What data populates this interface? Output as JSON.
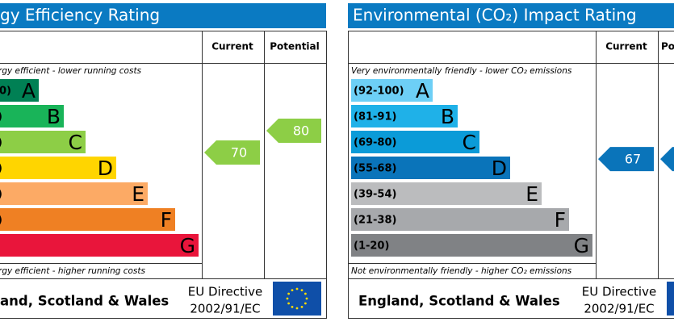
{
  "panels": [
    {
      "title": "gy Efficiency Rating",
      "columns": [
        "Current",
        "Potential"
      ],
      "top_note": "rgy efficient - lower running costs",
      "bottom_note": "rgy efficient - higher running costs",
      "bands": [
        {
          "range": "0)",
          "letter": "A",
          "color": "#008054"
        },
        {
          "range": ")",
          "letter": "B",
          "color": "#19b459"
        },
        {
          "range": ")",
          "letter": "C",
          "color": "#8dce46"
        },
        {
          "range": ")",
          "letter": "D",
          "color": "#ffd500"
        },
        {
          "range": ")",
          "letter": "E",
          "color": "#fcaa65"
        },
        {
          "range": ")",
          "letter": "F",
          "color": "#ef8023"
        },
        {
          "letter": "G",
          "color": "#e9153b"
        }
      ],
      "current": {
        "value": 70,
        "color": "#8dce46"
      },
      "potential": {
        "value": 80,
        "color": "#8dce46"
      },
      "footer": {
        "region": "and, Scotland & Wales",
        "directive": "EU Directive",
        "code": "2002/91/EC"
      }
    },
    {
      "title": "Environmental (CO₂) Impact Rating",
      "columns": [
        "Current",
        "Po"
      ],
      "top_note": "Very environmentally friendly - lower CO₂ emissions",
      "bottom_note": "Not environmentally friendly - higher CO₂ emissions",
      "bands": [
        {
          "range": "(92-100)",
          "letter": "A",
          "color": "#6dcff6"
        },
        {
          "range": "(81-91)",
          "letter": "B",
          "color": "#1fb1e8"
        },
        {
          "range": "(69-80)",
          "letter": "C",
          "color": "#0b9bd8"
        },
        {
          "range": "(55-68)",
          "letter": "D",
          "color": "#0a74ba"
        },
        {
          "range": "(39-54)",
          "letter": "E",
          "color": "#bbbcbe"
        },
        {
          "range": "(21-38)",
          "letter": "F",
          "color": "#a7a9ac"
        },
        {
          "range": "(1-20)",
          "letter": "G",
          "color": "#808285"
        }
      ],
      "current": {
        "value": 67,
        "color": "#0a74ba"
      },
      "potential": {
        "color": "#0a74ba"
      },
      "footer": {
        "region": "England, Scotland & Wales",
        "directive": "EU Directive",
        "code": "2002/91/EC"
      }
    }
  ]
}
